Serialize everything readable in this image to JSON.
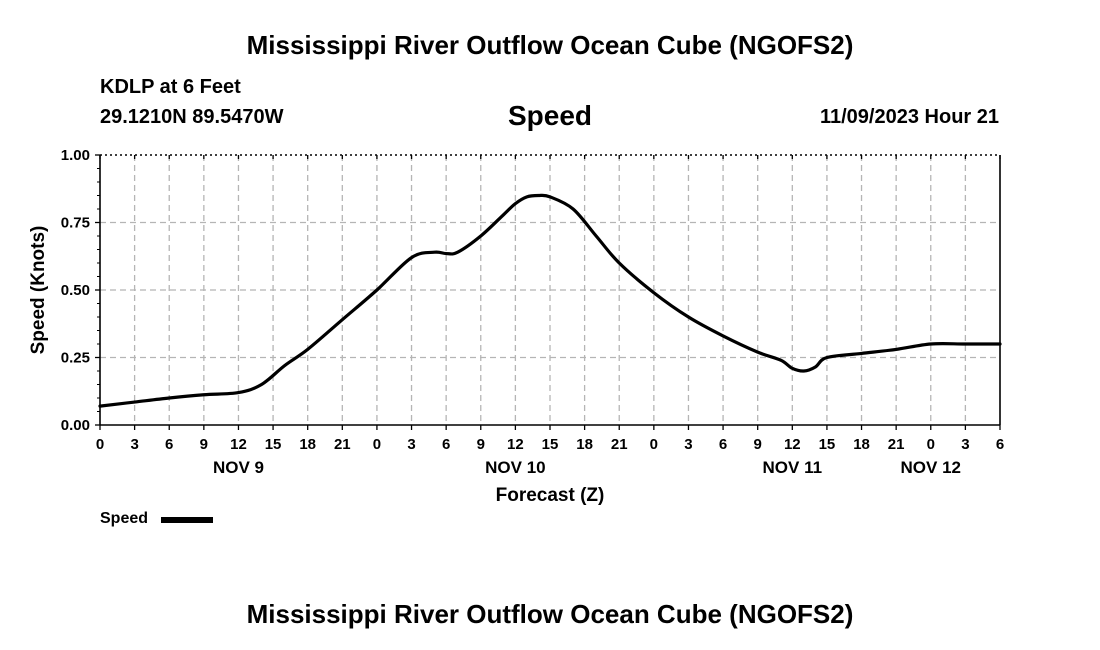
{
  "header": {
    "title": "Mississippi River Outflow Ocean Cube (NGOFS2)",
    "station": "KDLP at 6 Feet",
    "coords": "29.1210N  89.5470W",
    "variable": "Speed",
    "datetime": "11/09/2023 Hour 21"
  },
  "footer": {
    "title": "Mississippi River Outflow Ocean Cube (NGOFS2)"
  },
  "legend": {
    "label": "Speed"
  },
  "chart_data": {
    "type": "line",
    "title": "Speed",
    "xlabel": "Forecast (Z)",
    "ylabel": "Speed (Knots)",
    "ylim": [
      0,
      1
    ],
    "xlim_hours": [
      0,
      78
    ],
    "yticks": [
      "0.00",
      "0.25",
      "0.50",
      "0.75",
      "1.00"
    ],
    "x_tick_labels": [
      "0",
      "3",
      "6",
      "9",
      "12",
      "15",
      "18",
      "21",
      "0",
      "3",
      "6",
      "9",
      "12",
      "15",
      "18",
      "21",
      "0",
      "3",
      "6",
      "9",
      "12",
      "15",
      "18",
      "21",
      "0",
      "3",
      "6"
    ],
    "day_labels": [
      {
        "label": "NOV 9",
        "hour": 12
      },
      {
        "label": "NOV 10",
        "hour": 36
      },
      {
        "label": "NOV 11",
        "hour": 60
      },
      {
        "label": "NOV 12",
        "hour": 72
      }
    ],
    "grid": true,
    "series": [
      {
        "name": "Speed",
        "color": "#000000",
        "x_hours": [
          0,
          3,
          6,
          9,
          12,
          14,
          16,
          18,
          21,
          24,
          27,
          29,
          30,
          31,
          33,
          35,
          36,
          37,
          38,
          39,
          41,
          43,
          45,
          48,
          51,
          54,
          57,
          59,
          60,
          61,
          62,
          63,
          66,
          69,
          72,
          75,
          78
        ],
        "values": [
          0.07,
          0.085,
          0.1,
          0.112,
          0.12,
          0.15,
          0.22,
          0.28,
          0.39,
          0.5,
          0.62,
          0.64,
          0.635,
          0.64,
          0.7,
          0.78,
          0.82,
          0.845,
          0.85,
          0.845,
          0.8,
          0.7,
          0.6,
          0.49,
          0.4,
          0.33,
          0.27,
          0.24,
          0.21,
          0.2,
          0.215,
          0.25,
          0.265,
          0.28,
          0.3,
          0.3,
          0.3
        ]
      }
    ]
  }
}
